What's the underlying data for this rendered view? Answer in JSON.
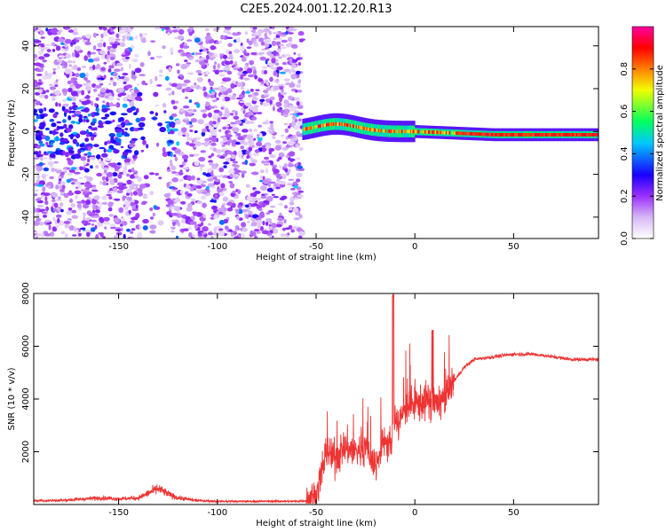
{
  "figure": {
    "title": "C2E5.2024.001.12.20.R13"
  },
  "chart_data": [
    {
      "type": "heatmap",
      "xlabel": "Height of straight line (km)",
      "ylabel": "Frequency (Hz)",
      "xlim": [
        -193,
        93
      ],
      "ylim": [
        -50,
        49
      ],
      "x_ticks": [
        -150,
        -100,
        -50,
        0,
        50
      ],
      "y_ticks": [
        -40,
        -20,
        0,
        20,
        40
      ],
      "colorbar": {
        "label": "Normalized spectral amplitude",
        "range": [
          0,
          1
        ],
        "ticks": [
          0.0,
          0.2,
          0.4,
          0.6,
          0.8
        ],
        "tick_labels": [
          "0.0",
          "0.2",
          "0.4",
          "0.6",
          "0.8"
        ],
        "colormap": [
          "#ffffff",
          "#d6b8f5",
          "#9b30ff",
          "#1a00ff",
          "#00c8ff",
          "#00ff60",
          "#f0ff00",
          "#ff8000",
          "#ff0000",
          "#ff00a0"
        ]
      },
      "regions": [
        {
          "x_range": [
            -193,
            -57
          ],
          "y_range": [
            -50,
            49
          ],
          "level": "noise 0.05-0.35"
        },
        {
          "x_range": [
            -57,
            93
          ],
          "y_center": 0,
          "y_spread": 3,
          "level": "signal 0.4-1.0"
        }
      ]
    },
    {
      "type": "line",
      "xlabel": "Height of straight line (km)",
      "ylabel": "SNR (10 * v/v)",
      "xlim": [
        -193,
        93
      ],
      "ylim": [
        0,
        8000
      ],
      "x_ticks": [
        -150,
        -100,
        -50,
        0,
        50
      ],
      "y_ticks": [
        2000,
        4000,
        6000,
        8000
      ],
      "color": "#ee3333",
      "series": [
        {
          "x": [
            -193,
            -180,
            -170,
            -160,
            -150,
            -140,
            -130,
            -125,
            -120,
            -110,
            -100,
            -80,
            -60,
            -55,
            -50,
            -45,
            -40,
            -35,
            -30,
            -25,
            -20,
            -15,
            -12,
            -10,
            -8,
            -5,
            0,
            5,
            8,
            10,
            12,
            15,
            20,
            25,
            30,
            40,
            50,
            60,
            70,
            80,
            93
          ],
          "y": [
            150,
            150,
            200,
            250,
            220,
            250,
            600,
            400,
            250,
            150,
            120,
            120,
            120,
            150,
            300,
            2000,
            1800,
            2200,
            2000,
            2200,
            1500,
            2500,
            2200,
            3500,
            3000,
            3700,
            3800,
            3900,
            4000,
            3800,
            3900,
            4000,
            4700,
            5200,
            5500,
            5600,
            5700,
            5700,
            5600,
            5500,
            5500
          ]
        }
      ]
    }
  ]
}
